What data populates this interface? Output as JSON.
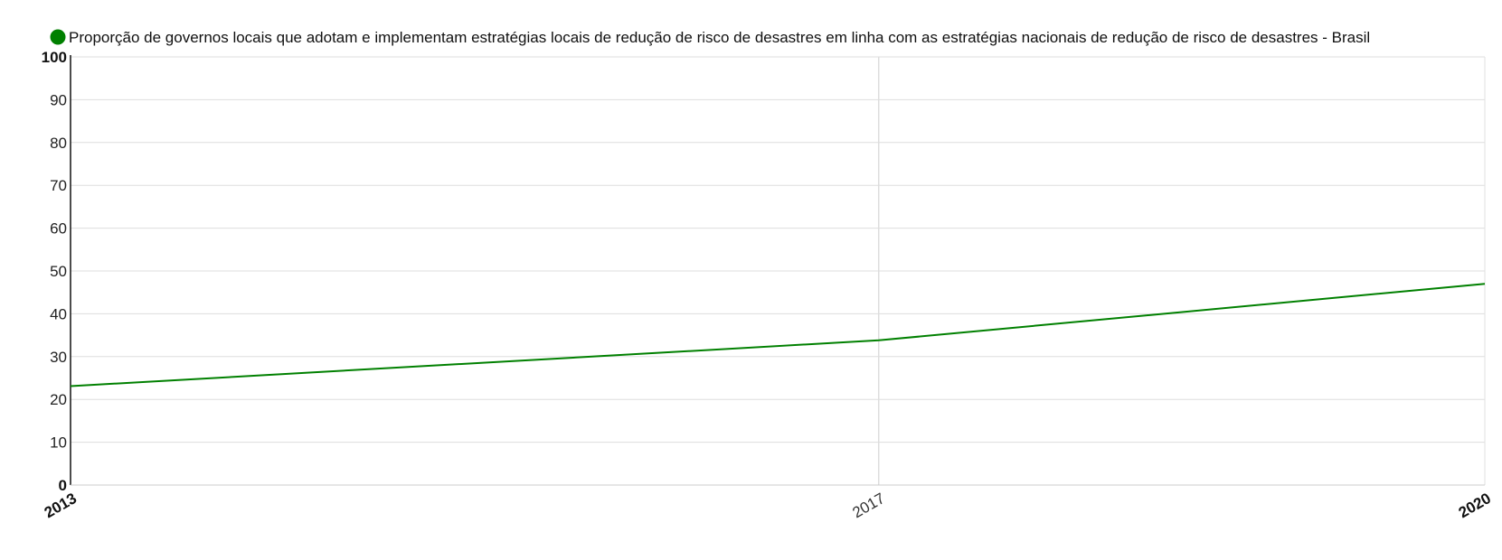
{
  "chart_data": {
    "type": "line",
    "title": "",
    "xlabel": "",
    "ylabel": "",
    "x": [
      "2013",
      "2017",
      "2020"
    ],
    "x_numeric": [
      2013,
      2017,
      2020
    ],
    "xlim": [
      2013,
      2020
    ],
    "ylim": [
      0,
      100
    ],
    "yticks": [
      "0",
      "10",
      "20",
      "30",
      "40",
      "50",
      "60",
      "70",
      "80",
      "90",
      "100"
    ],
    "xticks": [
      "2013",
      "2017",
      "2020"
    ],
    "grid": true,
    "legend_position": "top-left",
    "series": [
      {
        "name": "Proporção de governos locais que adotam e implementam estratégias locais de redução de risco de desastres em linha com as estratégias nacionais de redução de risco de desastres - Brasil",
        "color": "#008000",
        "values": [
          23.1,
          33.8,
          47.0
        ]
      }
    ]
  }
}
